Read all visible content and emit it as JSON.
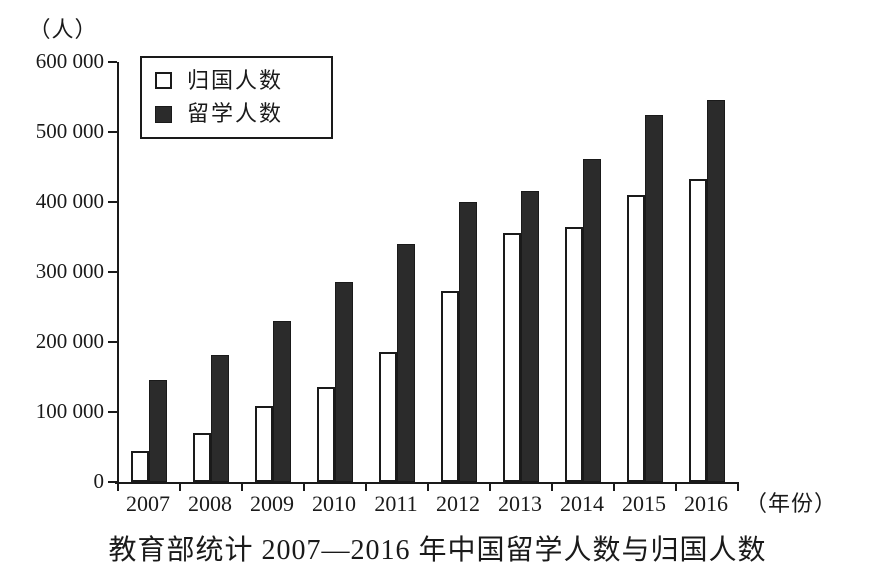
{
  "figure": {
    "y_unit_label": "（人）",
    "x_unit_label": "（年份）",
    "caption": "教育部统计 2007—2016 年中国留学人数与归国人数"
  },
  "chart_data": {
    "type": "bar",
    "title": "教育部统计 2007—2016 年中国留学人数与归国人数",
    "categories": [
      "2007",
      "2008",
      "2009",
      "2010",
      "2011",
      "2012",
      "2013",
      "2014",
      "2015",
      "2016"
    ],
    "series": [
      {
        "name": "归国人数",
        "key": "returnees",
        "fill": "#ffffff",
        "values": [
          44000,
          70000,
          108000,
          135000,
          186000,
          273000,
          355000,
          365000,
          410000,
          433000
        ]
      },
      {
        "name": "留学人数",
        "key": "study-abroad",
        "fill": "#2b2b2b",
        "values": [
          145000,
          181000,
          230000,
          285000,
          340000,
          400000,
          415000,
          462000,
          524000,
          546000
        ]
      }
    ],
    "ylabel": "（人）",
    "xlabel": "（年份）",
    "ylim": [
      0,
      600000
    ],
    "ytick_step": 100000,
    "ytick_labels": [
      "0",
      "100 000",
      "200 000",
      "300 000",
      "400 000",
      "500 000",
      "600 000"
    ],
    "legend_position": "top-left",
    "grid": false
  },
  "colors": {
    "bar_dark": "#2b2b2b",
    "axis": "#1a1a1a",
    "background": "#ffffff"
  }
}
